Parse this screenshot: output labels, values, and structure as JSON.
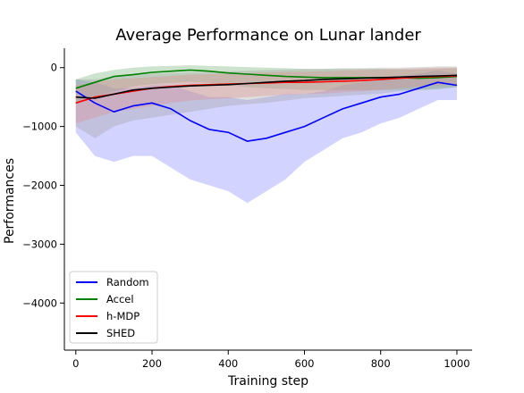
{
  "chart_data": {
    "type": "line",
    "title": "Average Performance on Lunar lander",
    "xlabel": "Training step",
    "ylabel": "Performances",
    "xlim": [
      -30,
      1040
    ],
    "ylim": [
      -4800,
      330
    ],
    "xticks": [
      0,
      200,
      400,
      600,
      800,
      1000
    ],
    "yticks": [
      0,
      -1000,
      -2000,
      -3000,
      -4000
    ],
    "xtick_labels": [
      "0",
      "200",
      "400",
      "600",
      "800",
      "1000"
    ],
    "ytick_labels": [
      "0",
      "−1000",
      "−2000",
      "−3000",
      "−4000"
    ],
    "grid": false,
    "legend_position": "lower-left",
    "series": [
      {
        "name": "Random",
        "color": "#0000ff",
        "band_color": "#8080ff",
        "x": [
          0,
          50,
          100,
          150,
          200,
          250,
          300,
          350,
          400,
          450,
          500,
          550,
          600,
          650,
          700,
          750,
          800,
          850,
          900,
          950,
          1000
        ],
        "y": [
          -400,
          -600,
          -750,
          -650,
          -600,
          -700,
          -900,
          -1050,
          -1100,
          -1250,
          -1200,
          -1100,
          -1000,
          -850,
          -700,
          -600,
          -500,
          -450,
          -350,
          -250,
          -300
        ],
        "lower": [
          -1100,
          -1500,
          -1600,
          -1500,
          -1500,
          -1700,
          -1900,
          -2000,
          -2100,
          -2300,
          -2100,
          -1900,
          -1600,
          -1400,
          -1200,
          -1100,
          -950,
          -850,
          -700,
          -550,
          -550
        ],
        "upper": [
          -200,
          -250,
          -350,
          -350,
          -300,
          -300,
          -400,
          -500,
          -500,
          -550,
          -500,
          -450,
          -450,
          -400,
          -300,
          -250,
          -200,
          -150,
          -100,
          -50,
          -100
        ]
      },
      {
        "name": "Accel",
        "color": "#008000",
        "band_color": "#70b070",
        "x": [
          0,
          50,
          100,
          150,
          200,
          250,
          300,
          350,
          400,
          450,
          500,
          550,
          600,
          650,
          700,
          750,
          800,
          850,
          900,
          950,
          1000
        ],
        "y": [
          -350,
          -250,
          -150,
          -120,
          -80,
          -60,
          -40,
          -60,
          -90,
          -110,
          -130,
          -150,
          -160,
          -170,
          -170,
          -170,
          -170,
          -170,
          -180,
          -170,
          -150
        ],
        "lower": [
          -600,
          -500,
          -400,
          -320,
          -280,
          -260,
          -240,
          -260,
          -300,
          -330,
          -350,
          -360,
          -380,
          -380,
          -380,
          -380,
          -380,
          -380,
          -380,
          -370,
          -330
        ],
        "upper": [
          -200,
          -100,
          -40,
          0,
          20,
          30,
          40,
          30,
          20,
          10,
          0,
          -10,
          -20,
          -20,
          -20,
          -20,
          -20,
          -30,
          -30,
          -20,
          -10
        ]
      },
      {
        "name": "h-MDP",
        "color": "#ff0000",
        "band_color": "#ff8080",
        "x": [
          0,
          50,
          100,
          150,
          200,
          250,
          300,
          350,
          400,
          450,
          500,
          550,
          600,
          650,
          700,
          750,
          800,
          850,
          900,
          950,
          1000
        ],
        "y": [
          -600,
          -500,
          -450,
          -400,
          -350,
          -320,
          -300,
          -290,
          -280,
          -270,
          -260,
          -250,
          -250,
          -240,
          -230,
          -220,
          -200,
          -180,
          -160,
          -150,
          -140
        ],
        "lower": [
          -950,
          -850,
          -750,
          -700,
          -650,
          -600,
          -560,
          -540,
          -520,
          -500,
          -480,
          -460,
          -450,
          -440,
          -420,
          -400,
          -380,
          -350,
          -320,
          -300,
          -290
        ],
        "upper": [
          -300,
          -250,
          -200,
          -180,
          -160,
          -140,
          -120,
          -110,
          -100,
          -90,
          -80,
          -70,
          -70,
          -60,
          -50,
          -40,
          -30,
          -20,
          -10,
          0,
          0
        ]
      },
      {
        "name": "SHED",
        "color": "#000000",
        "band_color": "#a0a0a0",
        "x": [
          0,
          50,
          100,
          150,
          200,
          250,
          300,
          350,
          400,
          450,
          500,
          550,
          600,
          650,
          700,
          750,
          800,
          850,
          900,
          950,
          1000
        ],
        "y": [
          -500,
          -520,
          -450,
          -380,
          -350,
          -330,
          -310,
          -300,
          -290,
          -270,
          -250,
          -230,
          -220,
          -200,
          -190,
          -180,
          -170,
          -160,
          -150,
          -140,
          -130
        ],
        "lower": [
          -1000,
          -1200,
          -1000,
          -900,
          -850,
          -800,
          -750,
          -700,
          -650,
          -620,
          -600,
          -560,
          -520,
          -500,
          -480,
          -460,
          -440,
          -400,
          -380,
          -350,
          -330
        ],
        "upper": [
          -200,
          -200,
          -150,
          -120,
          -100,
          -90,
          -80,
          -70,
          -60,
          -50,
          -40,
          -30,
          -20,
          -20,
          -10,
          -10,
          0,
          0,
          10,
          20,
          20
        ]
      }
    ]
  }
}
